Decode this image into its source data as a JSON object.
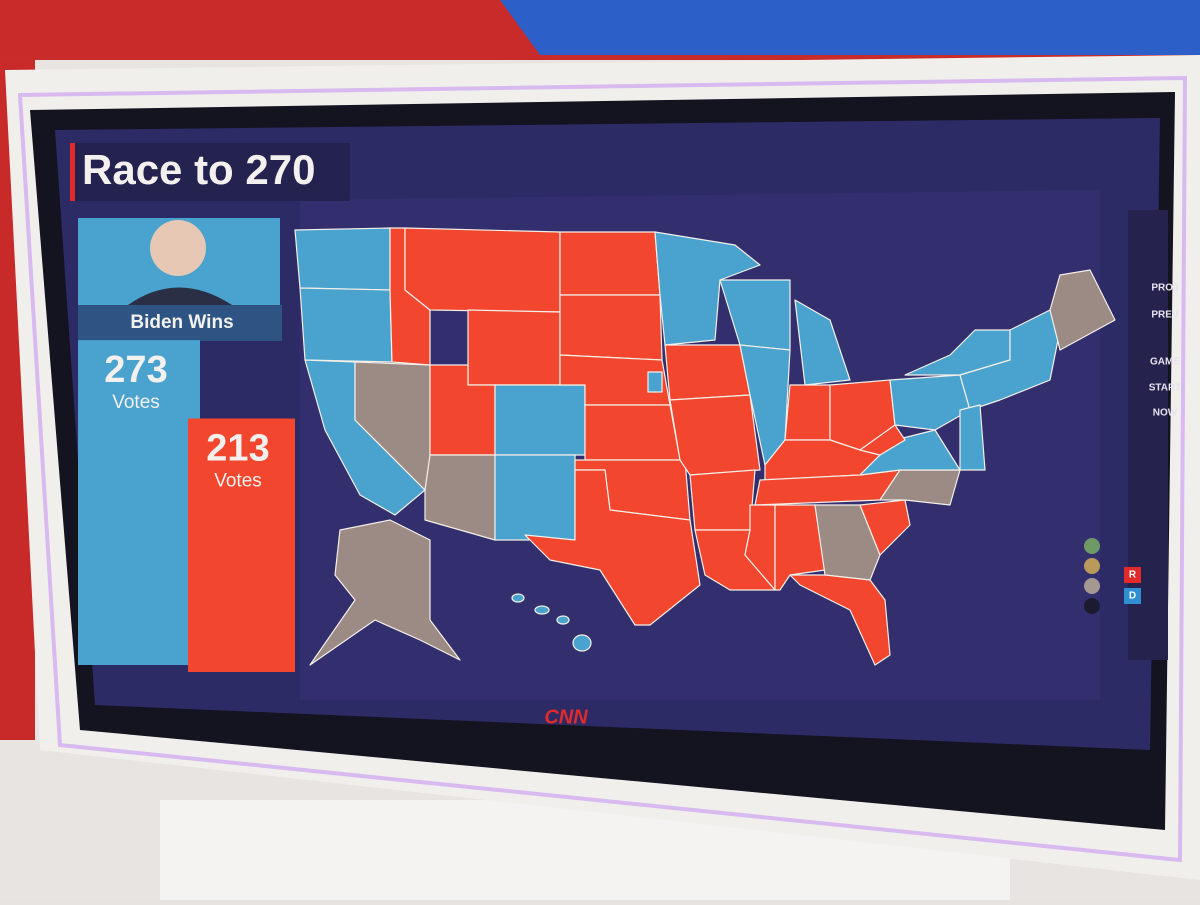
{
  "header": {
    "title": "Race to 270"
  },
  "candidates": [
    {
      "name": "Biden Wins",
      "votes": 273,
      "unit": "Votes",
      "color": "#4aa3cf"
    },
    {
      "votes": 213,
      "unit": "Votes",
      "color": "#f2462e"
    }
  ],
  "menu": [
    "PROJ",
    "PREV",
    "GAME",
    "START",
    "NOW"
  ],
  "tools": [
    "R",
    "D"
  ],
  "logo": "CNN"
}
